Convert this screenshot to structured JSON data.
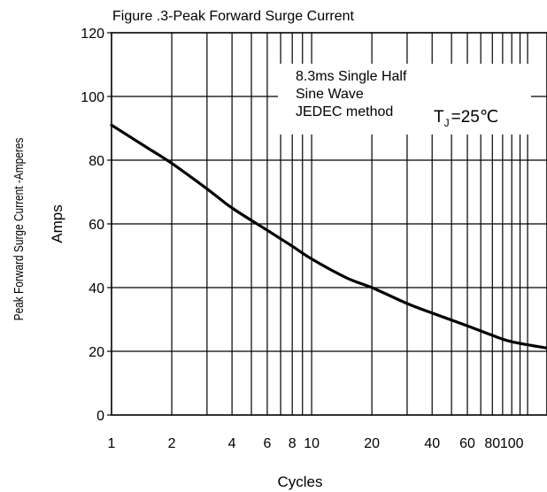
{
  "chart_data": {
    "type": "line",
    "title": "Figure .3-Peak Forward Surge Current",
    "xlabel": "Cycles",
    "ylabel": "Amps",
    "ylabel_outer": "Peak Forward Surge Current -Amperes",
    "x_scale": "log",
    "xlim": [
      1,
      150
    ],
    "ylim": [
      0,
      120
    ],
    "x_tick_labels": [
      "1",
      "2",
      "4",
      "6",
      "8",
      "10",
      "20",
      "40",
      "60",
      "80",
      "100"
    ],
    "x_gridlines": [
      1,
      2,
      3,
      4,
      5,
      6,
      7,
      8,
      9,
      10,
      20,
      30,
      40,
      50,
      60,
      70,
      80,
      90,
      100,
      110,
      120
    ],
    "y_ticks": [
      0,
      20,
      40,
      60,
      80,
      100,
      120
    ],
    "grid": true,
    "series": [
      {
        "x": [
          1,
          1.5,
          2,
          3,
          4,
          6,
          8,
          10,
          15,
          20,
          30,
          40,
          60,
          80,
          100,
          150
        ],
        "y": [
          91,
          84,
          79,
          71,
          65,
          58,
          53,
          49,
          43,
          40,
          35,
          32,
          28,
          25,
          23,
          21
        ]
      }
    ],
    "annotation": {
      "lines": [
        "8.3ms Single Half",
        "Sine Wave",
        "JEDEC method"
      ],
      "condition_symbol": "T",
      "condition_subscript": "J",
      "condition_value": "=25℃"
    }
  }
}
